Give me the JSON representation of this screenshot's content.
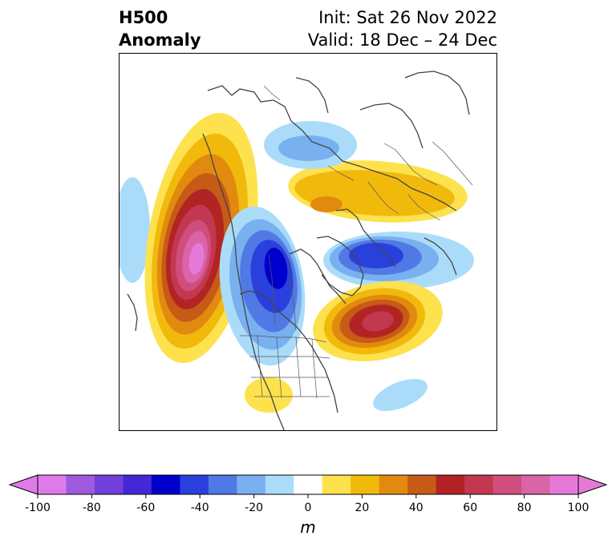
{
  "title": {
    "left_line1": "H500",
    "left_line2": "Anomaly",
    "right_line1": "Init: Sat 26 Nov 2022",
    "right_line2": "Valid: 18 Dec – 24 Dec"
  },
  "colorbar": {
    "unit": "m",
    "extend": "both",
    "ticks": [
      "-100",
      "-80",
      "-60",
      "-40",
      "-20",
      "0",
      "20",
      "40",
      "60",
      "80",
      "100"
    ],
    "levels": [
      -100,
      -90,
      -80,
      -70,
      -60,
      -50,
      -40,
      -30,
      -20,
      -10,
      10,
      20,
      30,
      40,
      50,
      60,
      70,
      80,
      90,
      100
    ],
    "colors": [
      "#de7be8",
      "#a05ae0",
      "#7040d8",
      "#4527d8",
      "#0000cc",
      "#2a40dc",
      "#5079e6",
      "#78b0f0",
      "#aadcfa",
      "#ffffff",
      "#fde24e",
      "#f2b90d",
      "#e28a10",
      "#c65a17",
      "#b22424",
      "#c23850",
      "#d04e7d",
      "#d964a7",
      "#e679d8"
    ]
  },
  "map": {
    "projection": "polar stereographic (North America)",
    "features": [
      "coastlines",
      "country borders",
      "state/province borders"
    ],
    "anomalies": [
      {
        "region": "North Pacific / Gulf of Alaska",
        "sign": "positive",
        "peak_m": 100
      },
      {
        "region": "Far North Pacific west edge",
        "sign": "negative",
        "peak_m": -20
      },
      {
        "region": "Eastern Canada / Great Lakes",
        "sign": "negative",
        "peak_m": -60
      },
      {
        "region": "Greenland / Canadian Archipelago",
        "sign": "negative",
        "peak_m": -60
      },
      {
        "region": "Arctic Ocean / Siberia",
        "sign": "positive",
        "peak_m": 40
      },
      {
        "region": "Northern Europe / Scandinavia",
        "sign": "negative",
        "peak_m": -40
      },
      {
        "region": "North Atlantic",
        "sign": "positive",
        "peak_m": 70
      },
      {
        "region": "Eastern Siberia / Laptev",
        "sign": "negative",
        "peak_m": -30
      },
      {
        "region": "Subtropical Atlantic",
        "sign": "negative",
        "peak_m": -20
      },
      {
        "region": "Southwest US / Mexico",
        "sign": "positive",
        "peak_m": 20
      }
    ]
  }
}
